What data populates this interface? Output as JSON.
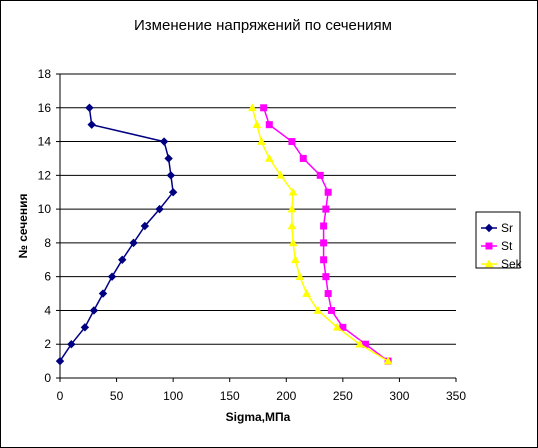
{
  "chart_data": {
    "type": "scatter",
    "title": "Изменение напряжений по сечениям",
    "xlabel": "Sigma,МПа",
    "ylabel": "№ сечения",
    "xlim": [
      0,
      350
    ],
    "ylim": [
      0,
      18
    ],
    "xticks": [
      0,
      50,
      100,
      150,
      200,
      250,
      300,
      350
    ],
    "yticks": [
      0,
      2,
      4,
      6,
      8,
      10,
      12,
      14,
      16,
      18
    ],
    "grid": "horizontal",
    "legend_position": "right",
    "series": [
      {
        "name": "Sr",
        "color": "#000080",
        "marker": "diamond",
        "points": [
          [
            0,
            1
          ],
          [
            10,
            2
          ],
          [
            22,
            3
          ],
          [
            30,
            4
          ],
          [
            38,
            5
          ],
          [
            46,
            6
          ],
          [
            55,
            7
          ],
          [
            65,
            8
          ],
          [
            75,
            9
          ],
          [
            88,
            10
          ],
          [
            100,
            11
          ],
          [
            98,
            12
          ],
          [
            96,
            13
          ],
          [
            92,
            14
          ],
          [
            28,
            15
          ],
          [
            26,
            16
          ]
        ]
      },
      {
        "name": "St",
        "color": "#FF00FF",
        "marker": "square",
        "points": [
          [
            290,
            1
          ],
          [
            270,
            2
          ],
          [
            250,
            3
          ],
          [
            240,
            4
          ],
          [
            237,
            5
          ],
          [
            235,
            6
          ],
          [
            233,
            7
          ],
          [
            233,
            8
          ],
          [
            233,
            9
          ],
          [
            235,
            10
          ],
          [
            237,
            11
          ],
          [
            230,
            12
          ],
          [
            215,
            13
          ],
          [
            205,
            14
          ],
          [
            185,
            15
          ],
          [
            180,
            16
          ]
        ]
      },
      {
        "name": "Sek",
        "color": "#FFFF00",
        "marker": "triangle",
        "points": [
          [
            290,
            1
          ],
          [
            265,
            2
          ],
          [
            245,
            3
          ],
          [
            228,
            4
          ],
          [
            218,
            5
          ],
          [
            212,
            6
          ],
          [
            208,
            7
          ],
          [
            206,
            8
          ],
          [
            205,
            9
          ],
          [
            205,
            10
          ],
          [
            206,
            11
          ],
          [
            195,
            12
          ],
          [
            185,
            13
          ],
          [
            178,
            14
          ],
          [
            174,
            15
          ],
          [
            170,
            16
          ]
        ]
      }
    ]
  }
}
